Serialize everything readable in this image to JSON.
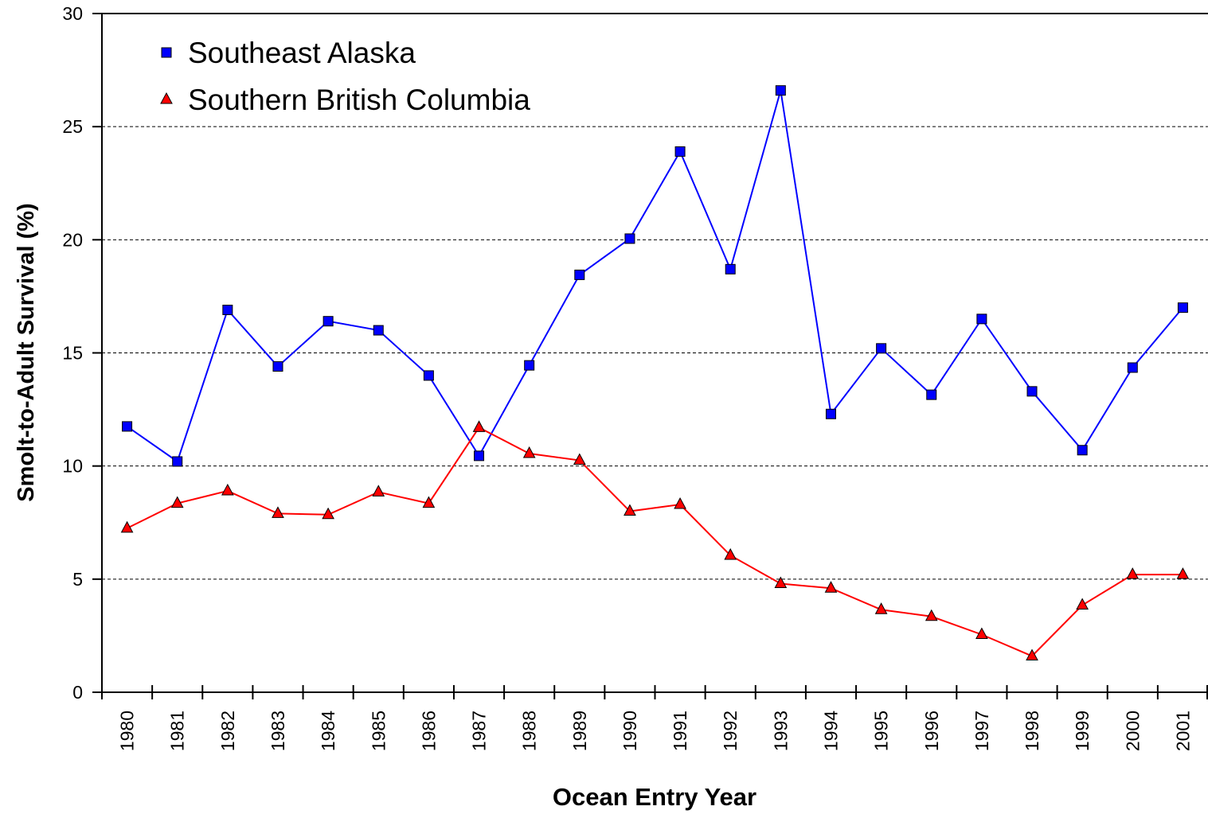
{
  "chart_data": {
    "type": "line",
    "x_label": "Ocean Entry Year",
    "y_label": "Smolt-to-Adult Survival (%)",
    "categories": [
      "1980",
      "1981",
      "1982",
      "1983",
      "1984",
      "1985",
      "1986",
      "1987",
      "1988",
      "1989",
      "1990",
      "1991",
      "1992",
      "1993",
      "1994",
      "1995",
      "1996",
      "1997",
      "1998",
      "1999",
      "2000",
      "2001"
    ],
    "series": [
      {
        "name": "Southeast Alaska",
        "color": "#0000ff",
        "marker": "square",
        "values": [
          11.75,
          10.2,
          16.9,
          14.4,
          16.4,
          16.0,
          14.0,
          10.45,
          14.45,
          18.45,
          20.05,
          23.9,
          18.7,
          26.6,
          12.3,
          15.2,
          13.15,
          16.5,
          13.3,
          10.7,
          14.35,
          17.0
        ]
      },
      {
        "name": "Southern British Columbia",
        "color": "#ff0000",
        "marker": "triangle",
        "values": [
          7.25,
          8.35,
          8.9,
          7.9,
          7.85,
          8.85,
          8.35,
          11.7,
          10.55,
          10.25,
          8.0,
          8.3,
          6.05,
          4.8,
          4.6,
          3.65,
          3.35,
          2.55,
          1.6,
          3.85,
          5.2,
          5.2
        ]
      }
    ],
    "ylim": [
      0,
      30
    ],
    "yticks": [
      0,
      5,
      10,
      15,
      20,
      25,
      30
    ],
    "grid": true,
    "legend": "upper-left"
  }
}
